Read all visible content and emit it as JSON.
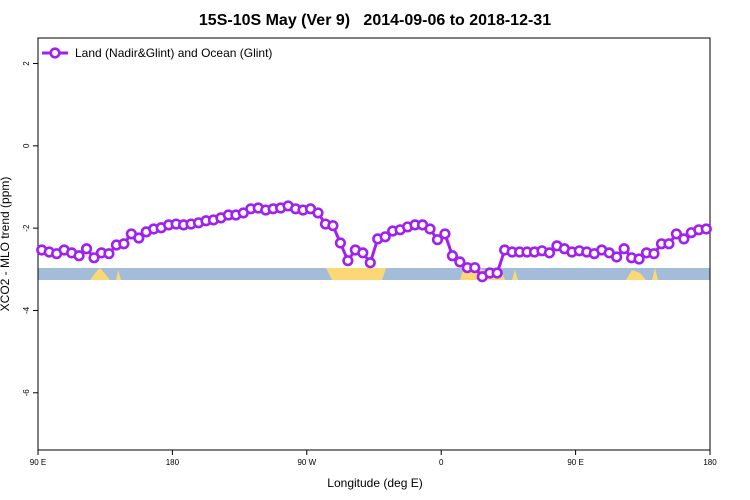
{
  "chart_data": {
    "type": "line",
    "title": "15S-10S May (Ver 9)   2014-09-06 to 2018-12-31",
    "xlabel": "Longitude (deg E)",
    "ylabel": "XCO2 - MLO trend (ppm)",
    "xlim": [
      90,
      540
    ],
    "ylim": [
      -7.39,
      2.62
    ],
    "xticks": [
      {
        "value": 90,
        "label": "90 E"
      },
      180,
      {
        "value": 270,
        "label": "90 W"
      },
      {
        "value": 360,
        "label": "0"
      },
      {
        "value": 450,
        "label": "90 E"
      },
      {
        "value": 540,
        "label": "180"
      }
    ],
    "yticks": [
      2,
      0,
      -2,
      -4,
      -6
    ],
    "legend": "top-left",
    "x": [
      92.5,
      97.5,
      102.5,
      107.5,
      112.5,
      117.5,
      122.5,
      127.5,
      132.5,
      137.5,
      142.5,
      147.5,
      152.5,
      157.5,
      162.5,
      167.5,
      172.5,
      177.5,
      182.5,
      187.5,
      192.5,
      197.5,
      202.5,
      207.5,
      212.5,
      217.5,
      222.5,
      227.5,
      232.5,
      237.5,
      242.5,
      247.5,
      252.5,
      257.5,
      262.5,
      267.5,
      272.5,
      277.5,
      282.5,
      287.5,
      292.5,
      297.5,
      302.5,
      307.5,
      312.5,
      317.5,
      322.5,
      327.5,
      332.5,
      337.5,
      342.5,
      347.5,
      352.5,
      357.5,
      362.5,
      367.5,
      372.5,
      377.5,
      382.5,
      387.5,
      392.5,
      397.5,
      402.5,
      407.5,
      412.5,
      417.5,
      422.5,
      427.5,
      432.5,
      437.5,
      442.5,
      447.5,
      452.5,
      457.5,
      462.5,
      467.5,
      472.5,
      477.5,
      482.5,
      487.5,
      492.5,
      497.5,
      502.5,
      507.5,
      512.5,
      517.5,
      522.5,
      527.5,
      532.5,
      537.5
    ],
    "series": [
      {
        "name": "Land (Nadir&Glint) and Ocean (Glint)",
        "color": "#a020f0",
        "values": [
          -2.53,
          -2.58,
          -2.62,
          -2.53,
          -2.6,
          -2.67,
          -2.5,
          -2.72,
          -2.6,
          -2.62,
          -2.41,
          -2.38,
          -2.14,
          -2.24,
          -2.09,
          -2.02,
          -1.99,
          -1.92,
          -1.9,
          -1.92,
          -1.9,
          -1.87,
          -1.82,
          -1.8,
          -1.75,
          -1.68,
          -1.68,
          -1.63,
          -1.53,
          -1.51,
          -1.56,
          -1.53,
          -1.51,
          -1.46,
          -1.53,
          -1.56,
          -1.53,
          -1.63,
          -1.9,
          -1.94,
          -2.36,
          -2.79,
          -2.53,
          -2.6,
          -2.84,
          -2.26,
          -2.21,
          -2.07,
          -2.04,
          -1.97,
          -1.92,
          -1.92,
          -2.02,
          -2.28,
          -2.14,
          -2.67,
          -2.82,
          -2.96,
          -2.96,
          -3.18,
          -3.09,
          -3.09,
          -2.53,
          -2.58,
          -2.58,
          -2.58,
          -2.58,
          -2.55,
          -2.6,
          -2.43,
          -2.5,
          -2.58,
          -2.55,
          -2.58,
          -2.62,
          -2.53,
          -2.6,
          -2.7,
          -2.5,
          -2.72,
          -2.75,
          -2.6,
          -2.62,
          -2.38,
          -2.38,
          -2.14,
          -2.26,
          -2.11,
          -2.04,
          -2.02
        ]
      }
    ]
  }
}
